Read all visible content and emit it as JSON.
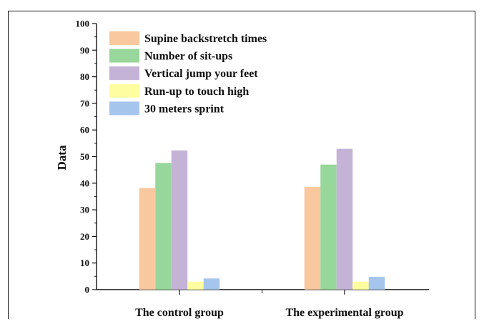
{
  "chart_data": {
    "type": "bar",
    "title": "",
    "xlabel": "",
    "ylabel": "Data",
    "ylim": [
      0,
      100
    ],
    "yticks": [
      0,
      10,
      20,
      30,
      40,
      50,
      60,
      70,
      80,
      90,
      100
    ],
    "categories": [
      "The control group",
      "The experimental group"
    ],
    "series": [
      {
        "name": "Supine backstretch times",
        "color": "#F9C89F",
        "values": [
          38.2,
          38.6
        ]
      },
      {
        "name": "Number of sit-ups",
        "color": "#98D79B",
        "values": [
          47.6,
          47.0
        ]
      },
      {
        "name": "Vertical jump your feet",
        "color": "#C5B3D7",
        "values": [
          52.3,
          52.9
        ]
      },
      {
        "name": "Run-up to touch high",
        "color": "#FEFEA0",
        "values": [
          3.0,
          3.0
        ]
      },
      {
        "name": "30 meters sprint",
        "color": "#A6C5EC",
        "values": [
          4.2,
          4.8
        ]
      }
    ],
    "grid": false,
    "legend_position": "top-left"
  }
}
